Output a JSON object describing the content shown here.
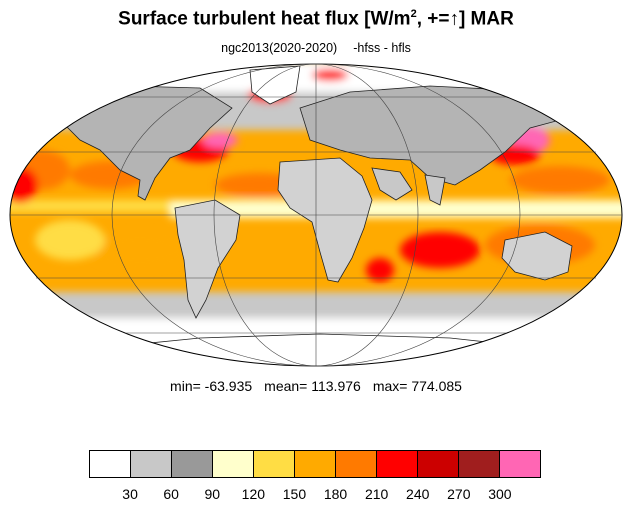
{
  "title": {
    "main": "Surface turbulent heat flux [W/m",
    "sup": "2",
    "suffix": ", +=↑]  MAR"
  },
  "subtitle": {
    "left": "ngc2013(2020-2020)",
    "right": "-hfss - hfls"
  },
  "stats": {
    "min": "min= -63.935",
    "mean": "mean= 113.976",
    "max": "max= 774.085"
  },
  "colorbar": {
    "colors": [
      "#ffffff",
      "#c8c8c8",
      "#999999",
      "#ffffcc",
      "#ffdd44",
      "#ffaa00",
      "#ff7a00",
      "#ff0000",
      "#cc0000",
      "#a01e1e",
      "#ff66b4"
    ],
    "labels": [
      "30",
      "60",
      "90",
      "120",
      "150",
      "180",
      "210",
      "240",
      "270",
      "300"
    ]
  }
}
